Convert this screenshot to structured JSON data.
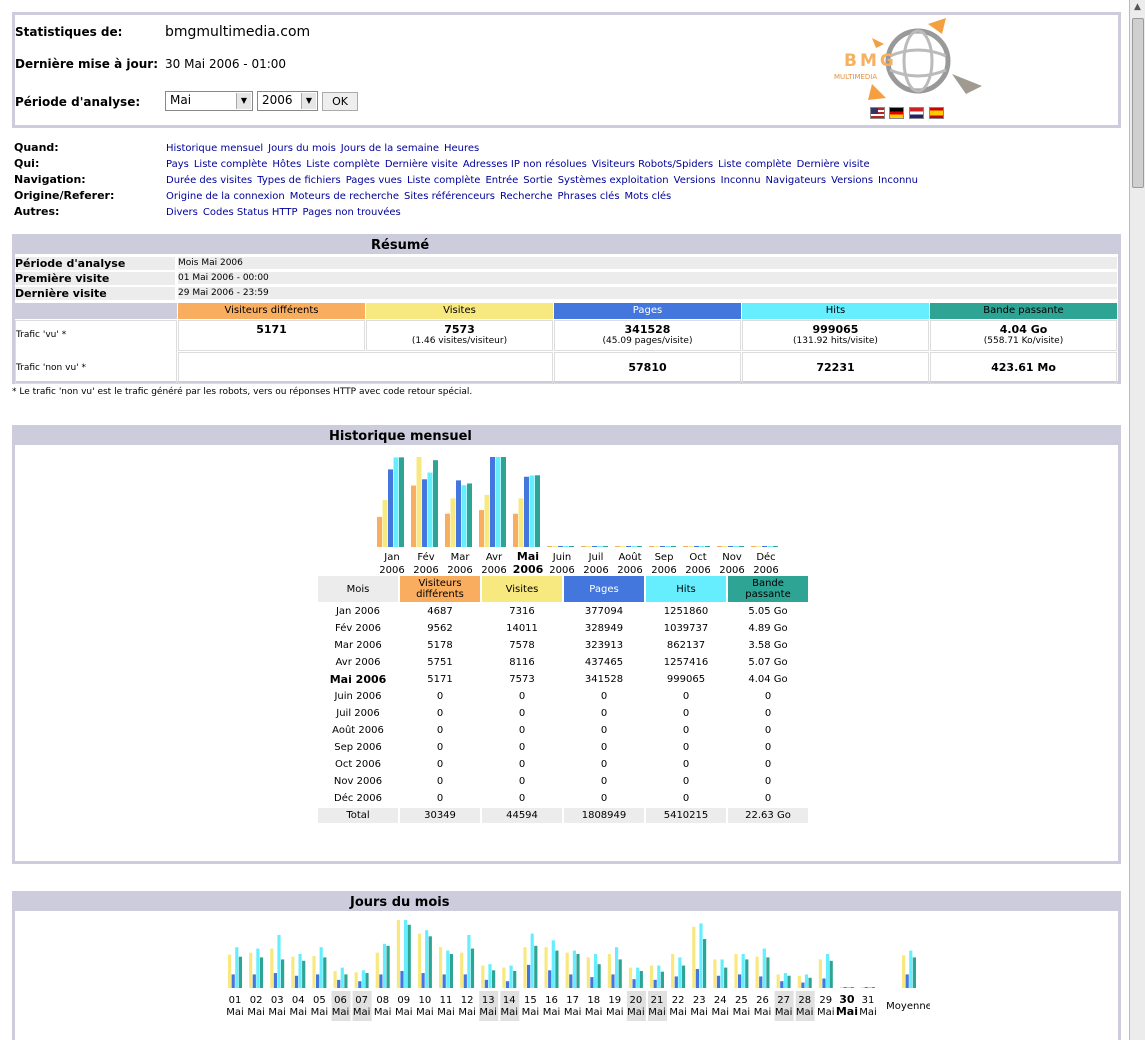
{
  "header": {
    "stats_label": "Statistiques de:",
    "stats_value": "bmgmultimedia.com",
    "update_label": "Dernière mise à jour:",
    "update_value": "30 Mai 2006 - 01:00",
    "period_label": "Période d'analyse:",
    "month_select": "Mai",
    "year_select": "2006",
    "ok_button": "OK",
    "logo_text": "BMG",
    "logo_sub": "MULTIMEDIA"
  },
  "colors": {
    "visitors": "#f9ad5f",
    "visits": "#f8e880",
    "pages": "#4477dd",
    "hits": "#66eeff",
    "bandwidth": "#2ea495",
    "header_bg": "#ccccdd"
  },
  "nav": [
    {
      "cat": "Quand:",
      "links": [
        "Historique mensuel",
        "Jours du mois",
        "Jours de la semaine",
        "Heures"
      ]
    },
    {
      "cat": "Qui:",
      "links": [
        "Pays",
        "Liste complète",
        "Hôtes",
        "Liste complète",
        "Dernière visite",
        "Adresses IP non résolues",
        "Visiteurs Robots/Spiders",
        "Liste complète",
        "Dernière visite"
      ]
    },
    {
      "cat": "Navigation:",
      "links": [
        "Durée des visites",
        "Types de fichiers",
        "Pages vues",
        "Liste complète",
        "Entrée",
        "Sortie",
        "Systèmes exploitation",
        "Versions",
        "Inconnu",
        "Navigateurs",
        "Versions",
        "Inconnu"
      ]
    },
    {
      "cat": "Origine/Referer:",
      "links": [
        "Origine de la connexion",
        "Moteurs de recherche",
        "Sites référenceurs",
        "Recherche",
        "Phrases clés",
        "Mots clés"
      ]
    },
    {
      "cat": "Autres:",
      "links": [
        "Divers",
        "Codes Status HTTP",
        "Pages non trouvées"
      ]
    }
  ],
  "summary": {
    "title": "Résumé",
    "period_label": "Période d'analyse",
    "period_value": "Mois Mai 2006",
    "first_label": "Première visite",
    "first_value": "01 Mai 2006 - 00:00",
    "last_label": "Dernière visite",
    "last_value": "29 Mai 2006 - 23:59",
    "cols": [
      "Visiteurs différents",
      "Visites",
      "Pages",
      "Hits",
      "Bande passante"
    ],
    "seen_label": "Trafic 'vu' *",
    "seen": [
      {
        "main": "5171",
        "sub": ""
      },
      {
        "main": "7573",
        "sub": "(1.46 visites/visiteur)"
      },
      {
        "main": "341528",
        "sub": "(45.09 pages/visite)"
      },
      {
        "main": "999065",
        "sub": "(131.92 hits/visite)"
      },
      {
        "main": "4.04 Go",
        "sub": "(558.71 Ko/visite)"
      }
    ],
    "unseen_label": "Trafic 'non vu' *",
    "unseen": [
      "57810",
      "72231",
      "423.61 Mo"
    ],
    "footnote": "* Le trafic 'non vu' est le trafic généré par les robots, vers ou réponses HTTP avec code retour spécial."
  },
  "monthly": {
    "title": "Historique mensuel",
    "col_month": "Mois",
    "cols": [
      "Visiteurs différents",
      "Visites",
      "Pages",
      "Hits",
      "Bande passante"
    ],
    "rows": [
      {
        "m": "Jan 2006",
        "v": "4687",
        "vi": "7316",
        "p": "377094",
        "h": "1251860",
        "b": "5.05 Go"
      },
      {
        "m": "Fév 2006",
        "v": "9562",
        "vi": "14011",
        "p": "328949",
        "h": "1039737",
        "b": "4.89 Go"
      },
      {
        "m": "Mar 2006",
        "v": "5178",
        "vi": "7578",
        "p": "323913",
        "h": "862137",
        "b": "3.58 Go"
      },
      {
        "m": "Avr 2006",
        "v": "5751",
        "vi": "8116",
        "p": "437465",
        "h": "1257416",
        "b": "5.07 Go"
      },
      {
        "m": "Mai 2006",
        "v": "5171",
        "vi": "7573",
        "p": "341528",
        "h": "999065",
        "b": "4.04 Go",
        "current": true
      },
      {
        "m": "Juin 2006",
        "v": "0",
        "vi": "0",
        "p": "0",
        "h": "0",
        "b": "0"
      },
      {
        "m": "Juil 2006",
        "v": "0",
        "vi": "0",
        "p": "0",
        "h": "0",
        "b": "0"
      },
      {
        "m": "Août 2006",
        "v": "0",
        "vi": "0",
        "p": "0",
        "h": "0",
        "b": "0"
      },
      {
        "m": "Sep 2006",
        "v": "0",
        "vi": "0",
        "p": "0",
        "h": "0",
        "b": "0"
      },
      {
        "m": "Oct 2006",
        "v": "0",
        "vi": "0",
        "p": "0",
        "h": "0",
        "b": "0"
      },
      {
        "m": "Nov 2006",
        "v": "0",
        "vi": "0",
        "p": "0",
        "h": "0",
        "b": "0"
      },
      {
        "m": "Déc 2006",
        "v": "0",
        "vi": "0",
        "p": "0",
        "h": "0",
        "b": "0"
      }
    ],
    "total": {
      "m": "Total",
      "v": "30349",
      "vi": "44594",
      "p": "1808949",
      "h": "5410215",
      "b": "22.63 Go"
    },
    "chart_labels": [
      [
        "Jan",
        "2006"
      ],
      [
        "Fév",
        "2006"
      ],
      [
        "Mar",
        "2006"
      ],
      [
        "Avr",
        "2006"
      ],
      [
        "Mai",
        "2006"
      ],
      [
        "Juin",
        "2006"
      ],
      [
        "Juil",
        "2006"
      ],
      [
        "Août",
        "2006"
      ],
      [
        "Sep",
        "2006"
      ],
      [
        "Oct",
        "2006"
      ],
      [
        "Nov",
        "2006"
      ],
      [
        "Déc",
        "2006"
      ]
    ]
  },
  "daily": {
    "title": "Jours du mois",
    "days": [
      "01",
      "02",
      "03",
      "04",
      "05",
      "06",
      "07",
      "08",
      "09",
      "10",
      "11",
      "12",
      "13",
      "14",
      "15",
      "16",
      "17",
      "18",
      "19",
      "20",
      "21",
      "22",
      "23",
      "24",
      "25",
      "26",
      "27",
      "28",
      "29",
      "30",
      "31"
    ],
    "month_label": "Mai",
    "weekend_days": [
      "06",
      "07",
      "13",
      "14",
      "20",
      "21",
      "27",
      "28"
    ],
    "current_day": "30",
    "average_label": "Moyenne"
  },
  "chart_data": [
    {
      "type": "bar",
      "title": "Historique mensuel",
      "categories": [
        "Jan 2006",
        "Fév 2006",
        "Mar 2006",
        "Avr 2006",
        "Mai 2006",
        "Juin 2006",
        "Juil 2006",
        "Août 2006",
        "Sep 2006",
        "Oct 2006",
        "Nov 2006",
        "Déc 2006"
      ],
      "series": [
        {
          "name": "Visiteurs différents",
          "values": [
            4687,
            9562,
            5178,
            5751,
            5171,
            0,
            0,
            0,
            0,
            0,
            0,
            0
          ]
        },
        {
          "name": "Visites",
          "values": [
            7316,
            14011,
            7578,
            8116,
            7573,
            0,
            0,
            0,
            0,
            0,
            0,
            0
          ]
        },
        {
          "name": "Pages",
          "values": [
            377094,
            328949,
            323913,
            437465,
            341528,
            0,
            0,
            0,
            0,
            0,
            0,
            0
          ]
        },
        {
          "name": "Hits",
          "values": [
            1251860,
            1039737,
            862137,
            1257416,
            999065,
            0,
            0,
            0,
            0,
            0,
            0,
            0
          ]
        },
        {
          "name": "Bande passante",
          "values": [
            5.05,
            4.89,
            3.58,
            5.07,
            4.04,
            0,
            0,
            0,
            0,
            0,
            0,
            0
          ]
        }
      ]
    },
    {
      "type": "bar",
      "title": "Jours du mois",
      "categories": [
        "01",
        "02",
        "03",
        "04",
        "05",
        "06",
        "07",
        "08",
        "09",
        "10",
        "11",
        "12",
        "13",
        "14",
        "15",
        "16",
        "17",
        "18",
        "19",
        "20",
        "21",
        "22",
        "23",
        "24",
        "25",
        "26",
        "27",
        "28",
        "29",
        "30",
        "31",
        "Moyenne"
      ],
      "series": [
        {
          "name": "Visites",
          "values": [
            0.49,
            0.52,
            0.58,
            0.46,
            0.47,
            0.25,
            0.23,
            0.52,
            1.0,
            0.8,
            0.6,
            0.52,
            0.33,
            0.3,
            0.6,
            0.6,
            0.52,
            0.45,
            0.5,
            0.3,
            0.33,
            0.5,
            0.9,
            0.42,
            0.5,
            0.46,
            0.2,
            0.18,
            0.42,
            0,
            0,
            0.48
          ]
        },
        {
          "name": "Pages",
          "values": [
            0.2,
            0.2,
            0.22,
            0.18,
            0.2,
            0.12,
            0.1,
            0.2,
            0.25,
            0.22,
            0.2,
            0.2,
            0.12,
            0.1,
            0.34,
            0.26,
            0.2,
            0.16,
            0.2,
            0.13,
            0.12,
            0.17,
            0.28,
            0.18,
            0.2,
            0.17,
            0.1,
            0.08,
            0.14,
            0,
            0,
            0.2
          ]
        },
        {
          "name": "Hits",
          "values": [
            0.6,
            0.58,
            0.78,
            0.5,
            0.6,
            0.3,
            0.26,
            0.65,
            1.0,
            0.85,
            0.55,
            0.78,
            0.35,
            0.33,
            0.8,
            0.7,
            0.55,
            0.5,
            0.6,
            0.3,
            0.33,
            0.45,
            0.95,
            0.42,
            0.5,
            0.58,
            0.22,
            0.2,
            0.5,
            0,
            0,
            0.55
          ]
        },
        {
          "name": "Bande passante",
          "values": [
            0.46,
            0.45,
            0.42,
            0.4,
            0.45,
            0.2,
            0.22,
            0.62,
            0.93,
            0.76,
            0.5,
            0.58,
            0.26,
            0.25,
            0.62,
            0.55,
            0.5,
            0.35,
            0.42,
            0.25,
            0.24,
            0.33,
            0.72,
            0.3,
            0.42,
            0.45,
            0.18,
            0.15,
            0.4,
            0,
            0,
            0.45
          ]
        }
      ]
    }
  ]
}
